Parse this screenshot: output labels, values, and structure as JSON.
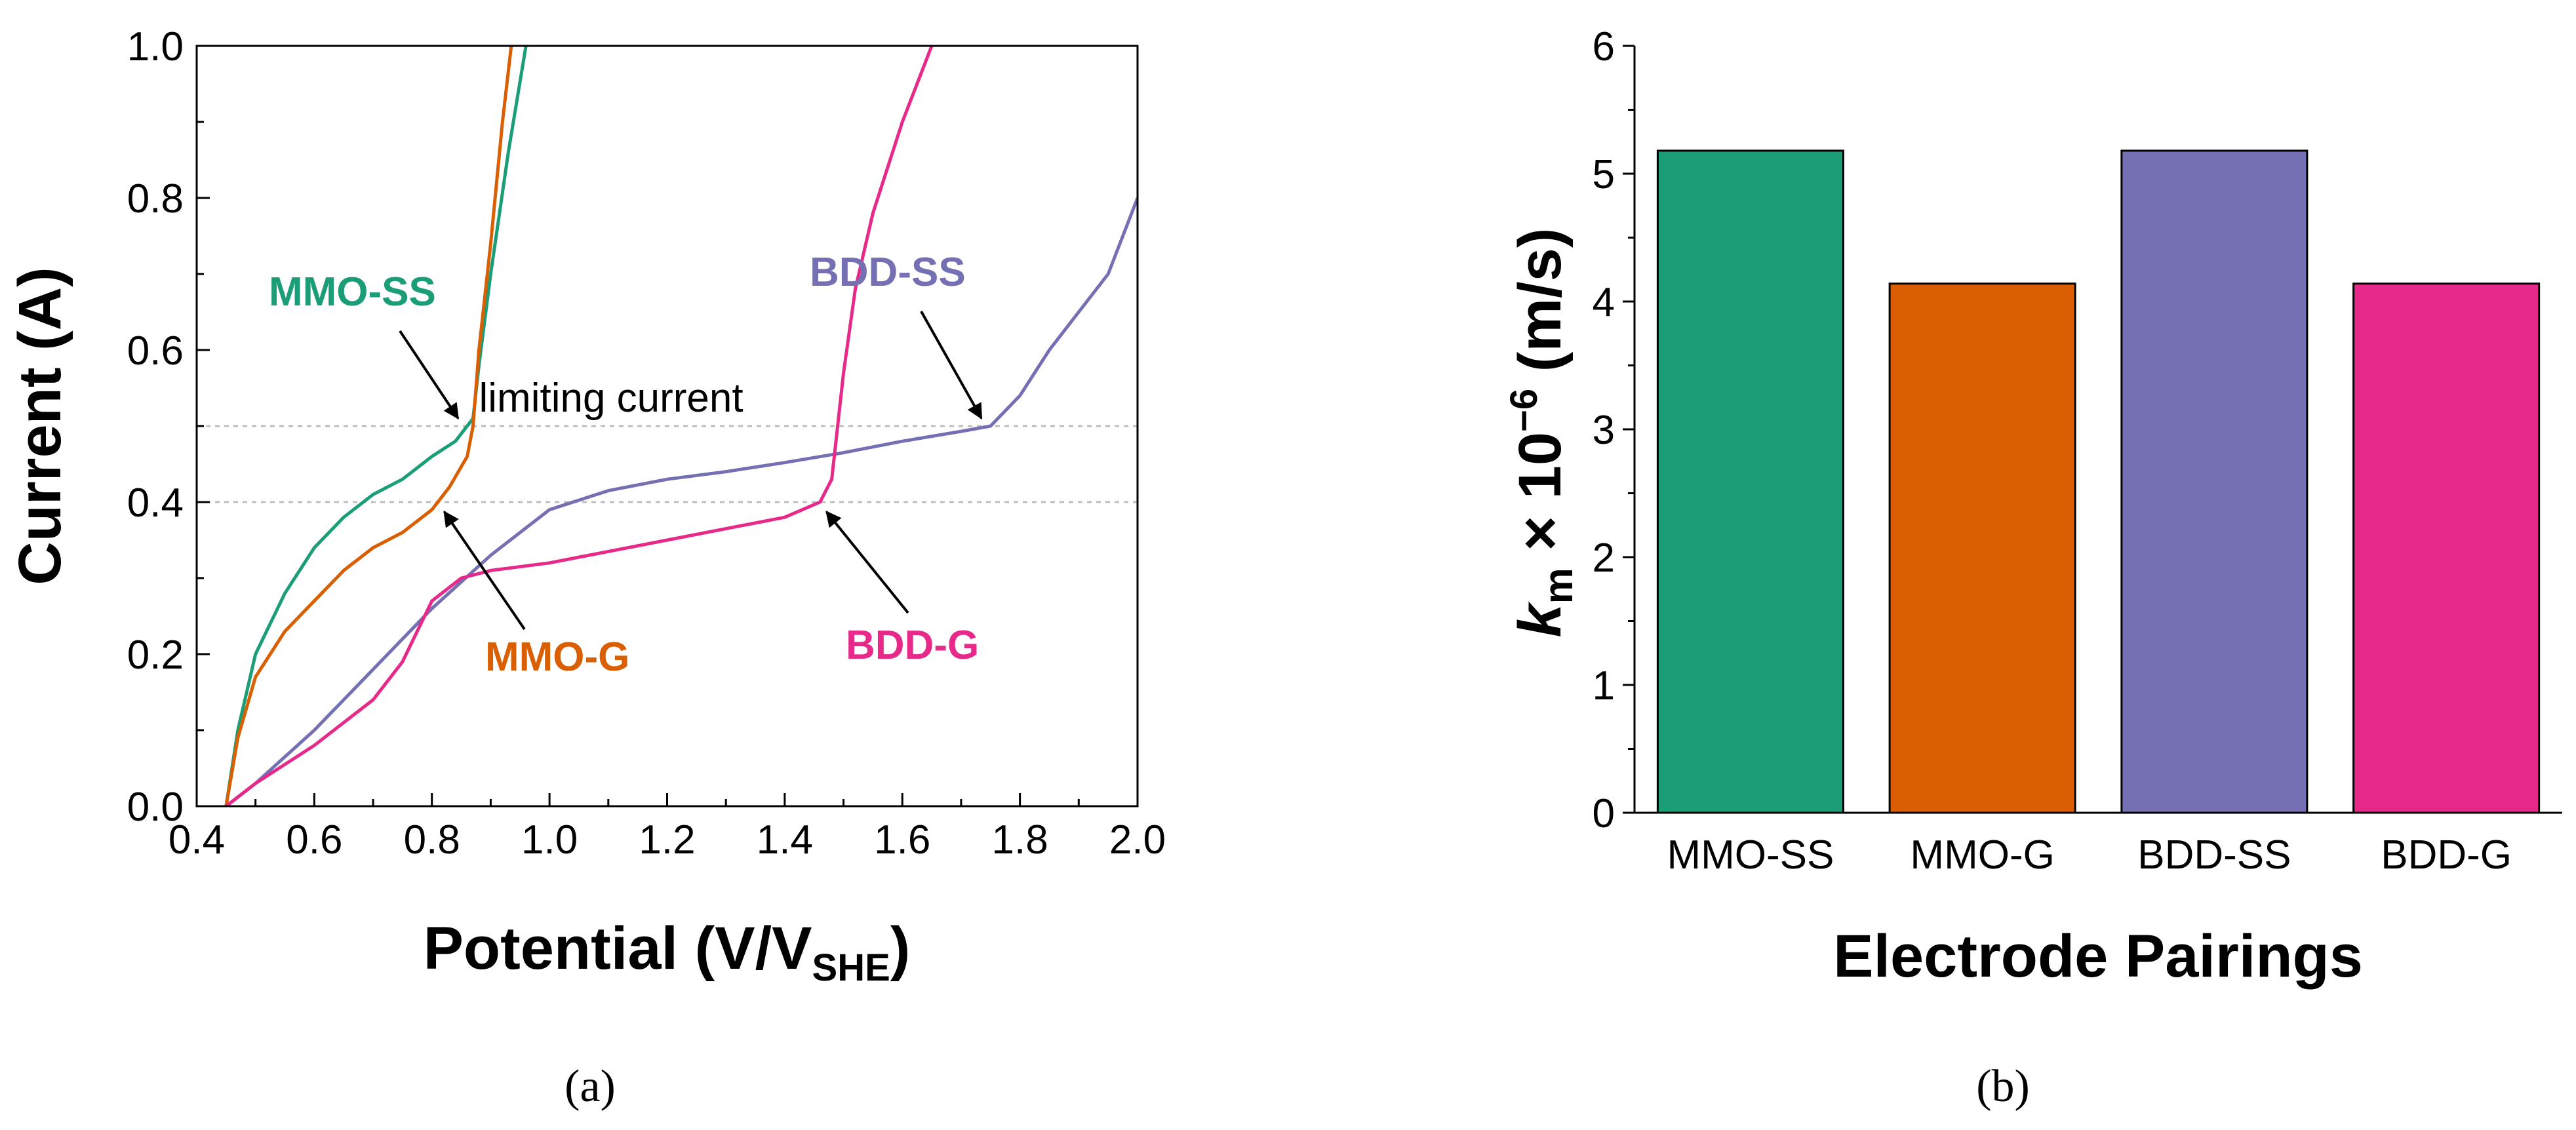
{
  "chart_data": [
    {
      "type": "line",
      "panel_label": "(a)",
      "xlabel_main": "Potential (V/V",
      "xlabel_sub": "SHE",
      "xlabel_close": ")",
      "ylabel": "Current (A)",
      "xlim": [
        0.4,
        2.0
      ],
      "ylim": [
        0.0,
        1.0
      ],
      "xticks": [
        "0.4",
        "0.6",
        "0.8",
        "1.0",
        "1.2",
        "1.4",
        "1.6",
        "1.8",
        "2.0"
      ],
      "yticks": [
        "0.0",
        "0.2",
        "0.4",
        "0.6",
        "0.8",
        "1.0"
      ],
      "reference_lines": [
        {
          "y": 0.5,
          "label": "limiting current"
        },
        {
          "y": 0.4,
          "label": ""
        }
      ],
      "series": [
        {
          "name": "MMO-SS",
          "color": "#1b9e77",
          "x": [
            0.45,
            0.47,
            0.5,
            0.55,
            0.6,
            0.65,
            0.7,
            0.75,
            0.8,
            0.84,
            0.87,
            0.88,
            0.9,
            0.93,
            0.96
          ],
          "y": [
            0.0,
            0.1,
            0.2,
            0.28,
            0.34,
            0.38,
            0.41,
            0.43,
            0.46,
            0.48,
            0.51,
            0.58,
            0.7,
            0.86,
            1.0
          ]
        },
        {
          "name": "MMO-G",
          "color": "#d95f02",
          "x": [
            0.45,
            0.47,
            0.5,
            0.55,
            0.6,
            0.65,
            0.7,
            0.75,
            0.8,
            0.83,
            0.86,
            0.87,
            0.88,
            0.9,
            0.92,
            0.935
          ],
          "y": [
            0.0,
            0.09,
            0.17,
            0.23,
            0.27,
            0.31,
            0.34,
            0.36,
            0.39,
            0.42,
            0.46,
            0.5,
            0.6,
            0.74,
            0.9,
            1.0
          ]
        },
        {
          "name": "BDD-SS",
          "color": "#7570b3",
          "x": [
            0.45,
            0.5,
            0.6,
            0.7,
            0.8,
            0.9,
            1.0,
            1.1,
            1.2,
            1.3,
            1.4,
            1.5,
            1.6,
            1.7,
            1.75,
            1.8,
            1.85,
            1.9,
            1.95,
            2.0
          ],
          "y": [
            0.0,
            0.03,
            0.1,
            0.18,
            0.26,
            0.33,
            0.39,
            0.415,
            0.43,
            0.44,
            0.452,
            0.465,
            0.48,
            0.493,
            0.5,
            0.54,
            0.6,
            0.65,
            0.7,
            0.8
          ]
        },
        {
          "name": "BDD-G",
          "color": "#e7298a",
          "x": [
            0.45,
            0.5,
            0.6,
            0.7,
            0.75,
            0.8,
            0.85,
            0.9,
            1.0,
            1.1,
            1.2,
            1.3,
            1.4,
            1.46,
            1.48,
            1.49,
            1.5,
            1.52,
            1.55,
            1.6,
            1.65
          ],
          "y": [
            0.0,
            0.03,
            0.08,
            0.14,
            0.19,
            0.27,
            0.3,
            0.31,
            0.32,
            0.335,
            0.35,
            0.365,
            0.38,
            0.4,
            0.43,
            0.5,
            0.57,
            0.68,
            0.78,
            0.9,
            1.0
          ]
        }
      ],
      "annotations": [
        {
          "series": "MMO-SS",
          "label": "MMO-SS",
          "point": [
            0.85,
            0.5
          ]
        },
        {
          "series": "MMO-G",
          "label": "MMO-G",
          "point": [
            0.81,
            0.4
          ]
        },
        {
          "series": "BDD-SS",
          "label": "BDD-SS",
          "point": [
            1.74,
            0.5
          ]
        },
        {
          "series": "BDD-G",
          "label": "BDD-G",
          "point": [
            1.46,
            0.4
          ]
        }
      ]
    },
    {
      "type": "bar",
      "panel_label": "(b)",
      "xlabel": "Electrode Pairings",
      "ylabel_k": "k",
      "ylabel_sub": "m",
      "ylabel_mid": " × 10",
      "ylabel_sup": "−6",
      "ylabel_end": " (m/s)",
      "ylim": [
        0,
        6
      ],
      "yticks": [
        "0",
        "1",
        "2",
        "3",
        "4",
        "5",
        "6"
      ],
      "categories": [
        "MMO-SS",
        "MMO-G",
        "BDD-SS",
        "BDD-G"
      ],
      "values": [
        5.18,
        4.14,
        5.18,
        4.14
      ],
      "colors": [
        "#1b9e77",
        "#d95f02",
        "#7570b3",
        "#e7298a"
      ]
    }
  ]
}
